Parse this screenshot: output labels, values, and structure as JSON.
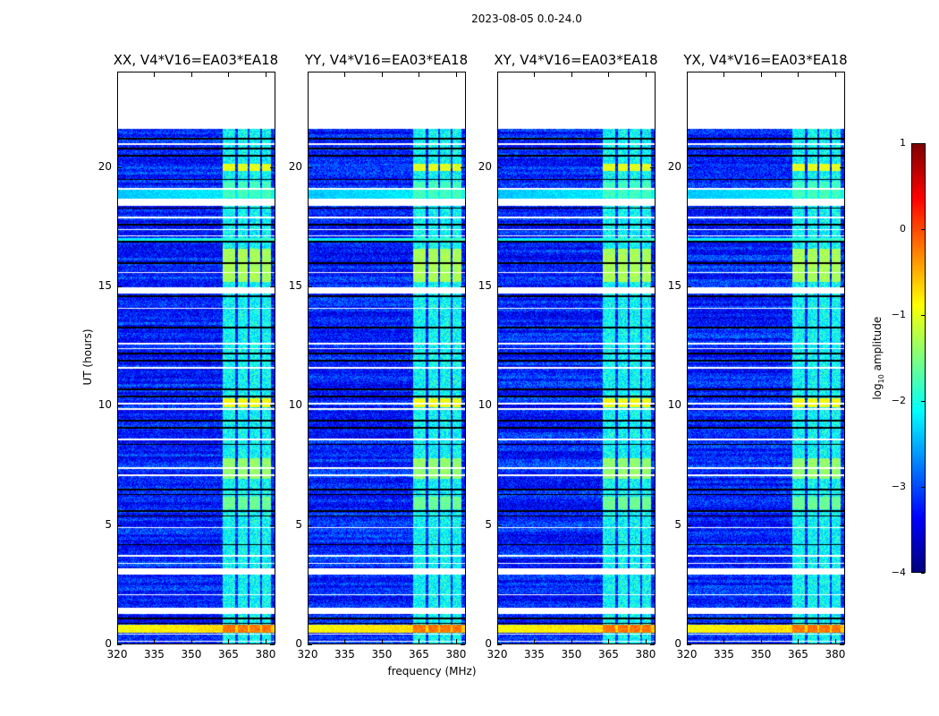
{
  "chart_data": {
    "type": "heatmap",
    "title": "2023-08-05 0.0-24.0",
    "xlabel": "frequency (MHz)",
    "ylabel": "UT (hours)",
    "xlim": [
      320,
      384
    ],
    "ylim": [
      0,
      24
    ],
    "xticks": [
      320,
      335,
      350,
      365,
      380
    ],
    "yticks": [
      0,
      5,
      10,
      15,
      20
    ],
    "data_end_hours": 21.6,
    "panels": [
      {
        "title": "XX, V4*V16=EA03*EA18"
      },
      {
        "title": "YY, V4*V16=EA03*EA18"
      },
      {
        "title": "XY, V4*V16=EA03*EA18"
      },
      {
        "title": "YX, V4*V16=EA03*EA18"
      }
    ],
    "colorbar": {
      "label": "log10 amplitude",
      "label_main": "log",
      "label_sub": "10",
      "label_tail": " amplitude",
      "vmin": -4,
      "vmax": 1,
      "ticks": [
        -4,
        -3,
        -2,
        -1,
        0,
        1
      ],
      "tick_labels": [
        "−4",
        "−3",
        "−2",
        "−1",
        "0",
        "1"
      ],
      "colormap": "jet"
    },
    "background_level": -3.2,
    "rfi_channels_mhz": [
      [
        362.5,
        367.5
      ],
      [
        368.5,
        372.5
      ],
      [
        373.5,
        377.5
      ],
      [
        378.5,
        382
      ]
    ],
    "rfi_baseline_level": -2.1,
    "flagged_gaps_hours": [
      [
        20.93,
        21.0
      ],
      [
        19.08,
        19.13
      ],
      [
        18.4,
        18.7
      ],
      [
        17.88,
        17.93
      ],
      [
        17.38,
        17.43
      ],
      [
        17.12,
        17.17
      ],
      [
        15.58,
        15.63
      ],
      [
        14.72,
        14.97
      ],
      [
        14.08,
        14.13
      ],
      [
        12.6,
        12.66
      ],
      [
        12.38,
        12.43
      ],
      [
        11.58,
        11.63
      ],
      [
        10.08,
        10.13
      ],
      [
        9.86,
        9.92
      ],
      [
        8.55,
        8.63
      ],
      [
        7.38,
        7.43
      ],
      [
        7.08,
        7.13
      ],
      [
        4.88,
        4.93
      ],
      [
        3.7,
        3.75
      ],
      [
        3.4,
        3.45
      ],
      [
        2.93,
        3.19
      ],
      [
        2.08,
        2.13
      ],
      [
        1.3,
        1.54
      ],
      [
        0.43,
        0.48
      ],
      [
        0.13,
        0.18
      ]
    ],
    "dark_rows_hours": [
      21.2,
      20.8,
      20.5,
      19.5,
      18.3,
      17.6,
      16.9,
      16.0,
      14.6,
      13.3,
      12.2,
      11.9,
      10.7,
      10.4,
      9.4,
      9.1,
      8.4,
      6.5,
      6.3,
      5.6,
      5.4,
      4.2,
      1.1,
      0.9
    ],
    "rfi_events": [
      {
        "t": [
          19.85,
          20.15
        ],
        "level": -1.0
      },
      {
        "t": [
          18.75,
          19.4
        ],
        "level": -1.8
      },
      {
        "t": [
          15.2,
          16.6
        ],
        "level": -1.3
      },
      {
        "t": [
          9.95,
          10.35
        ],
        "level": -0.9
      },
      {
        "t": [
          6.95,
          7.8
        ],
        "level": -1.4
      },
      {
        "t": [
          5.7,
          6.2
        ],
        "level": -1.6
      },
      {
        "t": [
          0.5,
          0.85
        ],
        "level": -0.2
      }
    ],
    "broadband_events": [
      {
        "t": [
          0.5,
          0.85
        ],
        "level": -0.9
      },
      {
        "t": [
          18.7,
          19.1
        ],
        "level": -2.4
      },
      {
        "t": [
          16.9,
          17.05
        ],
        "level": -2.2
      }
    ]
  }
}
